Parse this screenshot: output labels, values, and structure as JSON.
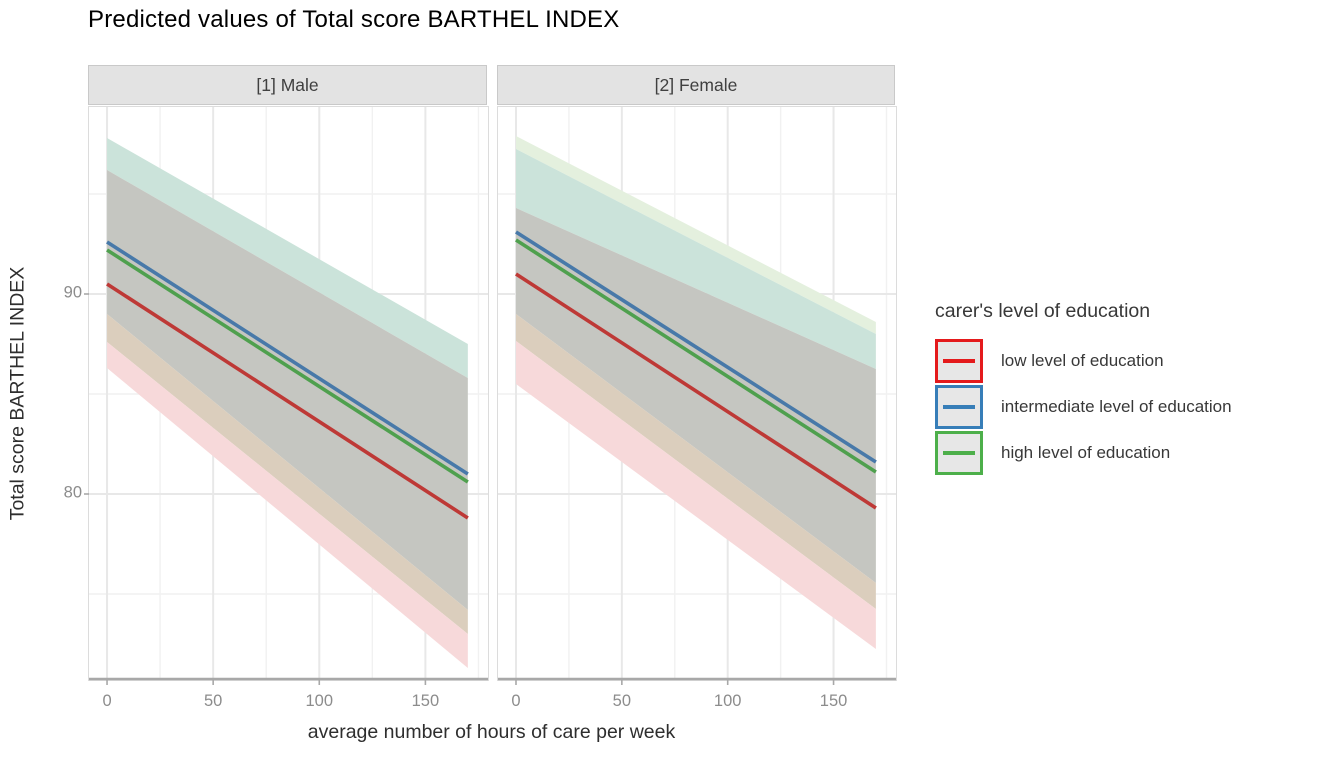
{
  "title": "Predicted values of Total score BARTHEL INDEX",
  "x_axis": {
    "label": "average number of hours of care per week",
    "major_ticks": [
      0,
      50,
      100,
      150
    ],
    "minor_ticks": [
      25,
      75,
      125,
      175
    ],
    "lim": [
      -8.5,
      179.5
    ]
  },
  "y_axis": {
    "label": "Total score BARTHEL INDEX",
    "major_ticks": [
      90,
      80
    ],
    "minor_ticks": [
      95,
      85,
      75
    ],
    "lim": [
      70.7,
      99.35
    ]
  },
  "legend": {
    "title": "carer's level of education",
    "items": [
      {
        "label": "low level of education",
        "color": "#E41A1C",
        "line_color": "#BE3936"
      },
      {
        "label": "intermediate level of education",
        "color": "#377EB8",
        "line_color": "#4879A9"
      },
      {
        "label": "high level of education",
        "color": "#4DAF4A",
        "line_color": "#4FA04E"
      }
    ]
  },
  "chart_data": {
    "type": "line",
    "title": "Predicted values of Total score BARTHEL INDEX",
    "xlabel": "average number of hours of care per week",
    "ylabel": "Total score BARTHEL INDEX",
    "x": [
      0,
      170
    ],
    "grid": "on",
    "legend_position": "right",
    "facets": [
      {
        "label": "[1] Male",
        "series": [
          {
            "name": "low level of education",
            "color_key": 0,
            "y": [
              90.5,
              78.8
            ]
          },
          {
            "name": "intermediate level of education",
            "color_key": 1,
            "y": [
              92.6,
              81.0
            ]
          },
          {
            "name": "high level of education",
            "color_key": 2,
            "y": [
              92.2,
              80.6
            ]
          }
        ],
        "ci_bands": [
          {
            "color": "#CBE3DA",
            "top": [
              97.8,
              87.5
            ],
            "bottom": [
              96.2,
              85.8
            ]
          },
          {
            "color": "#C5C6C1",
            "top": [
              96.2,
              85.8
            ],
            "bottom": [
              89.0,
              74.2
            ]
          },
          {
            "color": "#DBCEBD",
            "top": [
              89.0,
              74.2
            ],
            "bottom": [
              87.6,
              73.0
            ]
          },
          {
            "color": "#F7D9DA",
            "top": [
              87.6,
              73.0
            ],
            "bottom": [
              86.3,
              71.3
            ]
          }
        ]
      },
      {
        "label": "[2] Female",
        "series": [
          {
            "name": "low level of education",
            "color_key": 0,
            "y": [
              91.0,
              79.3
            ]
          },
          {
            "name": "intermediate level of education",
            "color_key": 1,
            "y": [
              93.1,
              81.6
            ]
          },
          {
            "name": "high level of education",
            "color_key": 2,
            "y": [
              92.7,
              81.1
            ]
          }
        ],
        "ci_bands": [
          {
            "color": "#E4F0DE",
            "top": [
              97.9,
              88.6
            ],
            "bottom": [
              97.25,
              88.0
            ]
          },
          {
            "color": "#CBE3DA",
            "top": [
              97.25,
              88.0
            ],
            "bottom": [
              94.3,
              86.25
            ]
          },
          {
            "color": "#C5C6C1",
            "top": [
              94.3,
              86.25
            ],
            "bottom": [
              89.0,
              75.55
            ]
          },
          {
            "color": "#DBCEBD",
            "top": [
              89.0,
              75.55
            ],
            "bottom": [
              87.65,
              74.25
            ]
          },
          {
            "color": "#F7D9DA",
            "top": [
              87.65,
              74.25
            ],
            "bottom": [
              85.5,
              72.25
            ]
          }
        ]
      }
    ]
  },
  "style_colors": {
    "grid_major": "#E8E8E8",
    "grid_minor": "#F1F1F1",
    "axis_line": "#A8A8A8",
    "tick_mark": "#A8A8A8"
  }
}
